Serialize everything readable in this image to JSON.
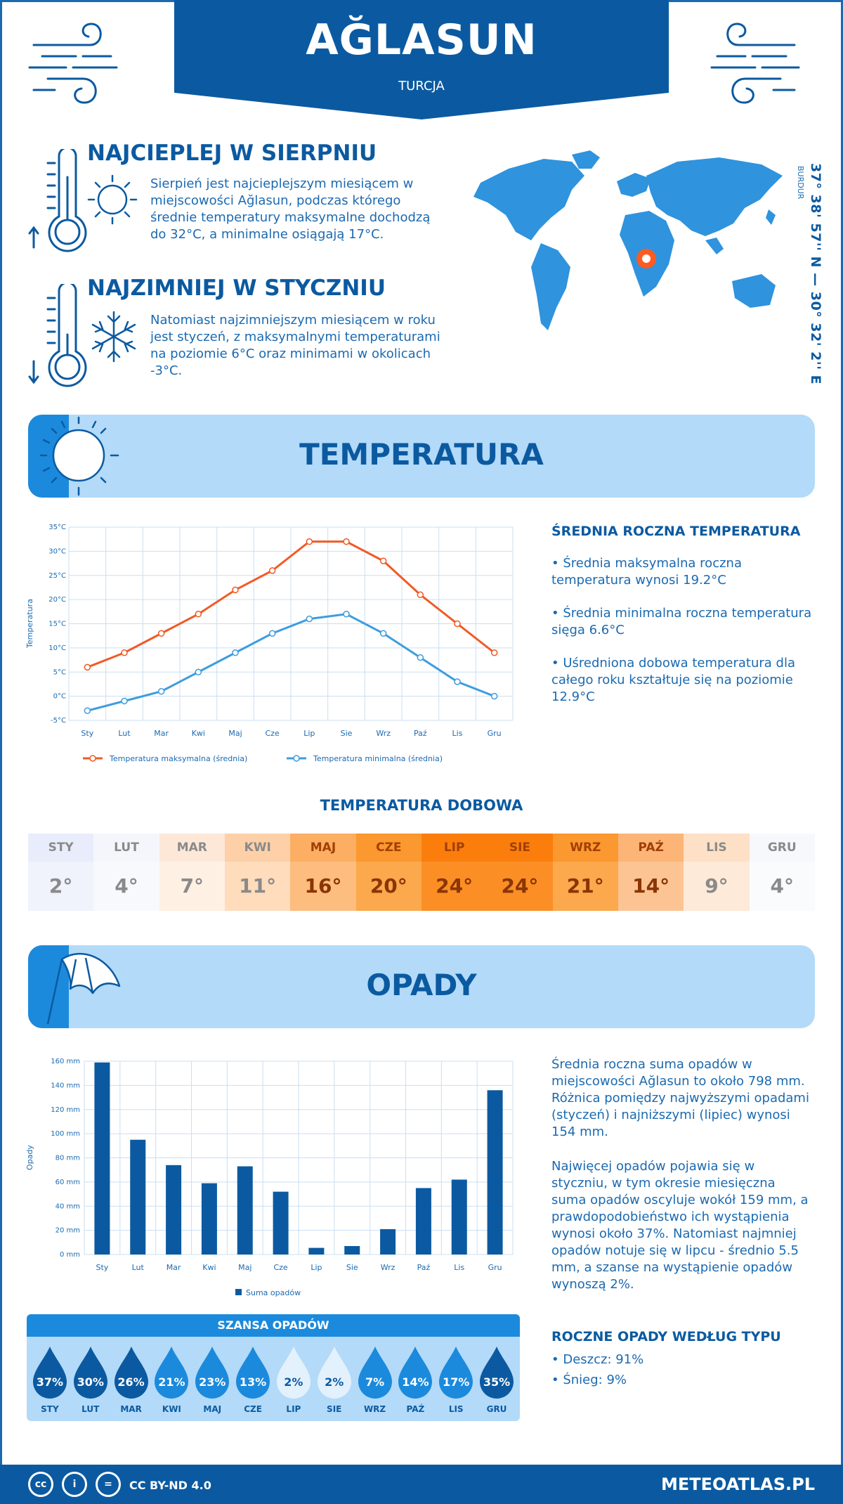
{
  "header": {
    "city": "AĞLASUN",
    "country": "TURCJA"
  },
  "warmest": {
    "title": "NAJCIEPLEJ W SIERPNIU",
    "text": "Sierpień jest najcieplejszym miesiącem w miejscowości Ağlasun, podczas którego średnie temperatury maksymalne dochodzą do 32°C, a minimalne osiągają 17°C."
  },
  "coldest": {
    "title": "NAJZIMNIEJ W STYCZNIU",
    "text": "Natomiast najzimniejszym miesiącem w roku jest styczeń, z maksymalnymi temperaturami na poziomie 6°C oraz minimami w okolicach -3°C."
  },
  "location": {
    "coords": "37° 38' 57'' N — 30° 32' 2'' E",
    "region": "BURDUR"
  },
  "temperature": {
    "band_title": "TEMPERATURA",
    "side_title": "ŚREDNIA ROCZNA TEMPERATURA",
    "p1": "• Średnia maksymalna roczna temperatura wynosi 19.2°C",
    "p2": "• Średnia minimalna roczna temperatura sięga 6.6°C",
    "p3": "• Uśredniona dobowa temperatura dla całego roku kształtuje się na poziomie 12.9°C"
  },
  "daily": {
    "title": "TEMPERATURA DOBOWA",
    "months": [
      "STY",
      "LUT",
      "MAR",
      "KWI",
      "MAJ",
      "CZE",
      "LIP",
      "SIE",
      "WRZ",
      "PAŹ",
      "LIS",
      "GRU"
    ],
    "values": [
      "2°",
      "4°",
      "7°",
      "11°",
      "16°",
      "20°",
      "24°",
      "24°",
      "21°",
      "14°",
      "9°",
      "4°"
    ],
    "head_colors": [
      "#e8ecfb",
      "#f4f6fc",
      "#fde8d8",
      "#fdd0a8",
      "#fcae62",
      "#fb982f",
      "#fb7e0c",
      "#fb7e0c",
      "#fb982f",
      "#fcb577",
      "#fde0c6",
      "#f7f8fb"
    ],
    "body_colors": [
      "#f0f2fc",
      "#f8f9fd",
      "#fff0e4",
      "#fedcbc",
      "#fdbd7e",
      "#fca84d",
      "#fb8f25",
      "#fb8f25",
      "#fca84d",
      "#fdc493",
      "#feead8",
      "#fafbfd"
    ]
  },
  "precip": {
    "band_title": "OPADY",
    "p1": "Średnia roczna suma opadów w miejscowości Ağlasun to około 798 mm. Różnica pomiędzy najwyższymi opadami (styczeń) i najniższymi (lipiec) wynosi 154 mm.",
    "p2": "Najwięcej opadów pojawia się w styczniu, w tym okresie miesięczna suma opadów oscyluje wokół 159 mm, a prawdopodobieństwo ich wystąpienia wynosi około 37%. Natomiast najmniej opadów notuje się w lipcu - średnio 5.5 mm, a szanse na wystąpienie opadów wynoszą 2%.",
    "type_title": "ROCZNE OPADY WEDŁUG TYPU",
    "rain": "• Deszcz: 91%",
    "snow": "• Śnieg: 9%"
  },
  "chance": {
    "title": "SZANSA OPADÓW",
    "months": [
      "STY",
      "LUT",
      "MAR",
      "KWI",
      "MAJ",
      "CZE",
      "LIP",
      "SIE",
      "WRZ",
      "PAŹ",
      "LIS",
      "GRU"
    ],
    "values": [
      "37%",
      "30%",
      "26%",
      "21%",
      "23%",
      "13%",
      "2%",
      "2%",
      "7%",
      "14%",
      "17%",
      "35%"
    ],
    "colors": [
      "#0b5aa1",
      "#0b5aa1",
      "#0b5aa1",
      "#1b8adc",
      "#1b8adc",
      "#1b8adc",
      "#e3f1fc",
      "#e3f1fc",
      "#1b8adc",
      "#1b8adc",
      "#1b8adc",
      "#0b5aa1"
    ],
    "text_colors": [
      "#fff",
      "#fff",
      "#fff",
      "#fff",
      "#fff",
      "#fff",
      "#0b5aa1",
      "#0b5aa1",
      "#fff",
      "#fff",
      "#fff",
      "#fff"
    ]
  },
  "footer": {
    "license": "CC BY-ND 4.0",
    "brand": "METEOATLAS.PL"
  },
  "chart_data": [
    {
      "type": "line",
      "categories": [
        "Sty",
        "Lut",
        "Mar",
        "Kwi",
        "Maj",
        "Cze",
        "Lip",
        "Sie",
        "Wrz",
        "Paź",
        "Lis",
        "Gru"
      ],
      "series": [
        {
          "name": "Temperatura maksymalna (średnia)",
          "values": [
            6,
            9,
            13,
            17,
            22,
            26,
            32,
            32,
            28,
            21,
            15,
            9
          ],
          "color": "#f15a24"
        },
        {
          "name": "Temperatura minimalna (średnia)",
          "values": [
            -3,
            -1,
            1,
            5,
            9,
            13,
            16,
            17,
            13,
            8,
            3,
            0
          ],
          "color": "#3d9ddf"
        }
      ],
      "ylabel": "Temperatura",
      "ylim": [
        -5,
        35
      ],
      "yticks": [
        "-5°C",
        "0°C",
        "5°C",
        "10°C",
        "15°C",
        "20°C",
        "25°C",
        "30°C",
        "35°C"
      ],
      "grid": true,
      "legend": "bottom"
    },
    {
      "type": "bar",
      "categories": [
        "Sty",
        "Lut",
        "Mar",
        "Kwi",
        "Maj",
        "Cze",
        "Lip",
        "Sie",
        "Wrz",
        "Paź",
        "Lis",
        "Gru"
      ],
      "series": [
        {
          "name": "Suma opadów",
          "values": [
            159,
            95,
            74,
            59,
            73,
            52,
            5.5,
            7,
            21,
            55,
            62,
            136
          ],
          "color": "#0b5aa1"
        }
      ],
      "ylabel": "Opady",
      "ylim": [
        0,
        160
      ],
      "yticks": [
        "0 mm",
        "20 mm",
        "40 mm",
        "60 mm",
        "80 mm",
        "100 mm",
        "120 mm",
        "140 mm",
        "160 mm"
      ],
      "grid": true,
      "legend": "bottom"
    }
  ]
}
